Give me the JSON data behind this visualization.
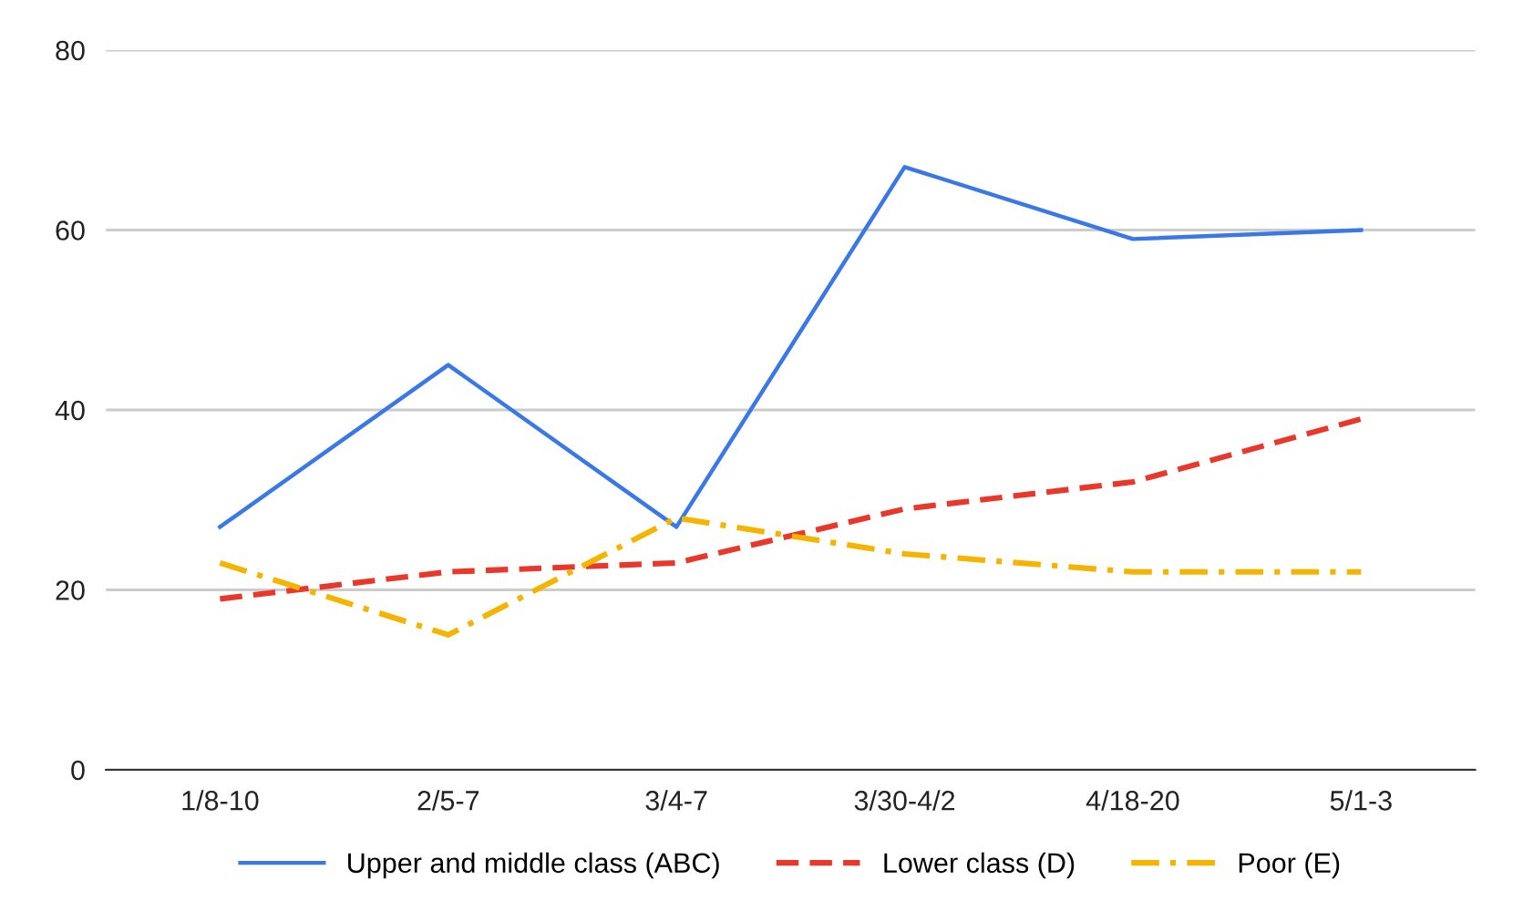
{
  "chart_data": {
    "type": "line",
    "categories": [
      "1/8-10",
      "2/5-7",
      "3/4-7",
      "3/30-4/2",
      "4/18-20",
      "5/1-3"
    ],
    "series": [
      {
        "name": "Upper and middle class (ABC)",
        "color": "#3b78e7",
        "line_style": "solid",
        "values": [
          27,
          45,
          27,
          67,
          59,
          60
        ]
      },
      {
        "name": "Lower class (D)",
        "color": "#e8382c",
        "line_style": "dashed",
        "values": [
          19,
          22,
          23,
          29,
          32,
          39
        ]
      },
      {
        "name": "Poor (E)",
        "color": "#f4b400",
        "line_style": "dashdot",
        "values": [
          23,
          15,
          28,
          24,
          22,
          22
        ]
      }
    ],
    "ylim": [
      0,
      80
    ],
    "yticks": [
      0,
      20,
      40,
      60,
      80
    ],
    "grid": "y",
    "legend": "bottom",
    "marker": "none"
  }
}
